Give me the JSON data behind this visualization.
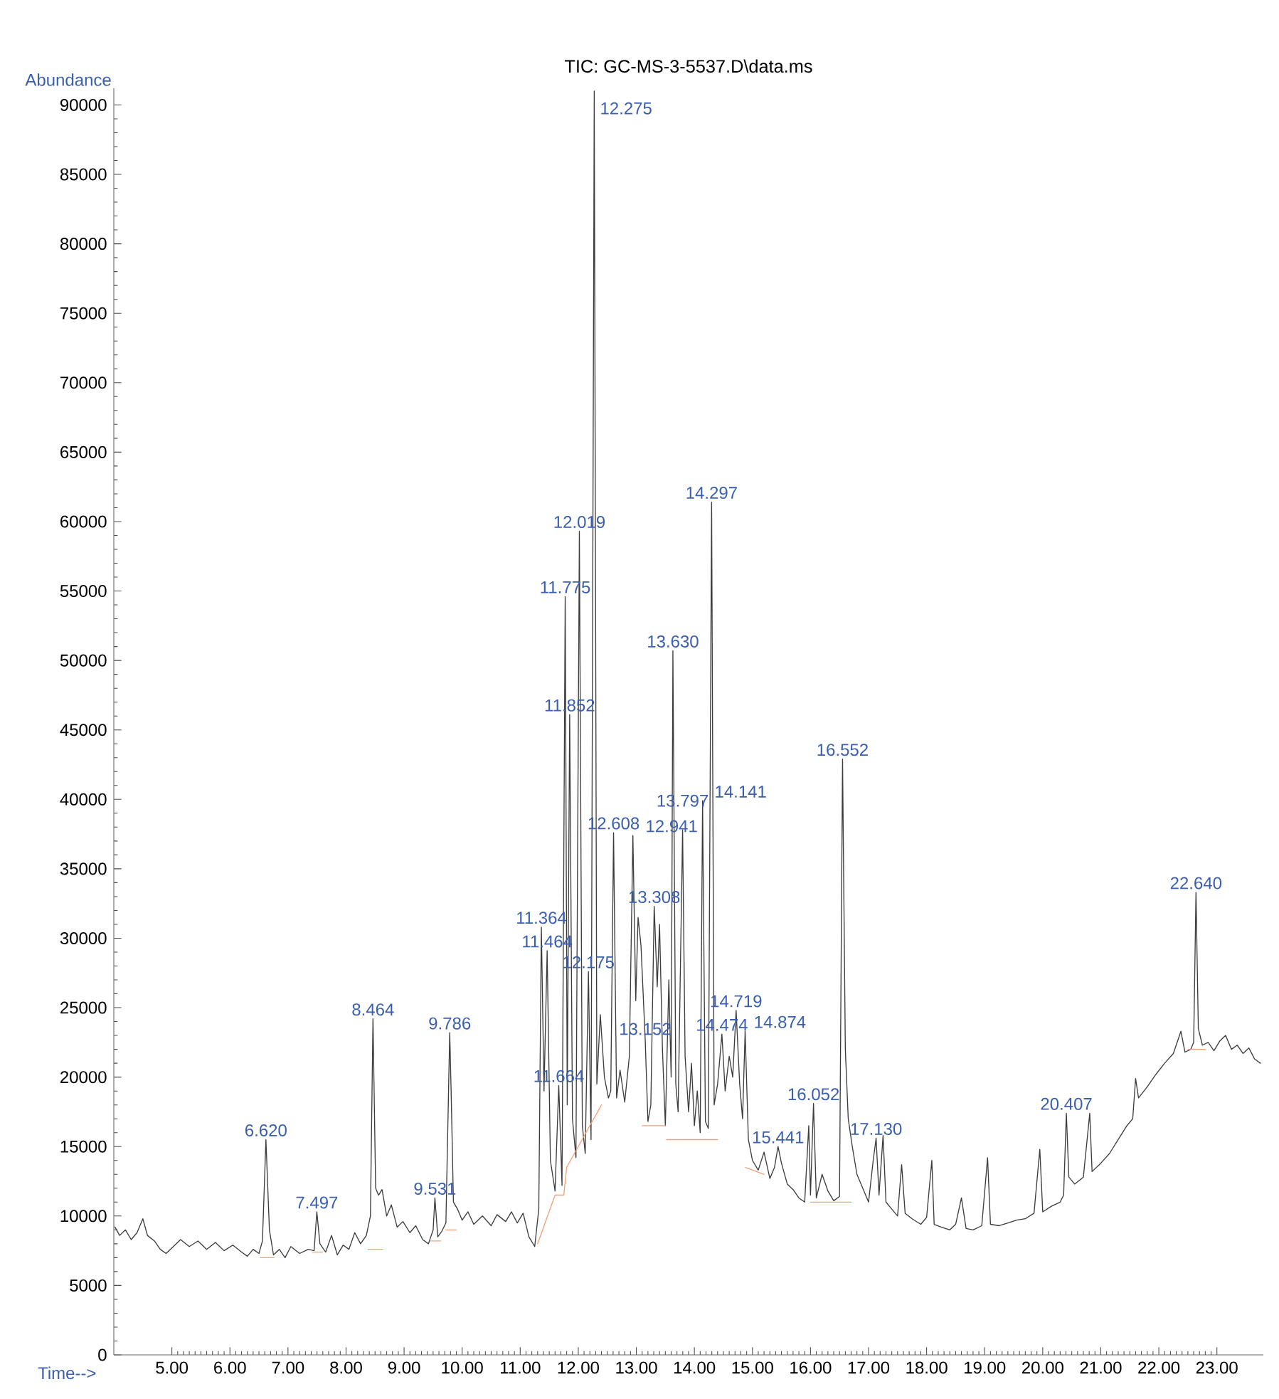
{
  "chart_data": {
    "type": "line",
    "title": "TIC: GC-MS-3-5537.D\\data.ms",
    "xlabel": "Time-->",
    "ylabel": "Abundance",
    "xlim": [
      4.0,
      23.8
    ],
    "ylim": [
      0,
      91200
    ],
    "xticks": [
      {
        "value": 5,
        "label": "5.00"
      },
      {
        "value": 6,
        "label": "6.00"
      },
      {
        "value": 7,
        "label": "7.00"
      },
      {
        "value": 8,
        "label": "8.00"
      },
      {
        "value": 9,
        "label": "9.00"
      },
      {
        "value": 10,
        "label": "10.00"
      },
      {
        "value": 11,
        "label": "11.00"
      },
      {
        "value": 12,
        "label": "12.00"
      },
      {
        "value": 13,
        "label": "13.00"
      },
      {
        "value": 14,
        "label": "14.00"
      },
      {
        "value": 15,
        "label": "15.00"
      },
      {
        "value": 16,
        "label": "16.00"
      },
      {
        "value": 17,
        "label": "17.00"
      },
      {
        "value": 18,
        "label": "18.00"
      },
      {
        "value": 19,
        "label": "19.00"
      },
      {
        "value": 20,
        "label": "20.00"
      },
      {
        "value": 21,
        "label": "21.00"
      },
      {
        "value": 22,
        "label": "22.00"
      },
      {
        "value": 23,
        "label": "23.00"
      }
    ],
    "yticks": [
      0,
      5000,
      10000,
      15000,
      20000,
      25000,
      30000,
      35000,
      40000,
      45000,
      50000,
      55000,
      60000,
      65000,
      70000,
      75000,
      80000,
      85000,
      90000
    ],
    "series": [
      {
        "color": "#3c3c3c",
        "x": [
          4.02,
          4.1,
          4.2,
          4.3,
          4.4,
          4.5,
          4.58,
          4.7,
          4.8,
          4.9,
          5.0,
          5.15,
          5.3,
          5.45,
          5.6,
          5.75,
          5.9,
          6.05,
          6.2,
          6.3,
          6.4,
          6.5,
          6.56,
          6.62,
          6.68,
          6.75,
          6.85,
          6.95,
          7.05,
          7.2,
          7.35,
          7.45,
          7.497,
          7.55,
          7.65,
          7.75,
          7.85,
          7.95,
          8.05,
          8.15,
          8.25,
          8.35,
          8.42,
          8.464,
          8.51,
          8.56,
          8.62,
          8.7,
          8.78,
          8.88,
          8.98,
          9.1,
          9.2,
          9.32,
          9.42,
          9.5,
          9.531,
          9.58,
          9.65,
          9.72,
          9.786,
          9.81,
          9.85,
          9.92,
          10.0,
          10.1,
          10.2,
          10.35,
          10.5,
          10.6,
          10.75,
          10.85,
          10.95,
          11.05,
          11.15,
          11.25,
          11.32,
          11.364,
          11.41,
          11.464,
          11.52,
          11.6,
          11.664,
          11.72,
          11.775,
          11.81,
          11.852,
          11.9,
          11.96,
          12.019,
          12.07,
          12.12,
          12.175,
          12.22,
          12.275,
          12.32,
          12.38,
          12.45,
          12.52,
          12.56,
          12.608,
          12.66,
          12.72,
          12.8,
          12.88,
          12.941,
          12.99,
          13.03,
          13.08,
          13.152,
          13.2,
          13.25,
          13.308,
          13.36,
          13.4,
          13.45,
          13.5,
          13.56,
          13.6,
          13.63,
          13.68,
          13.72,
          13.797,
          13.84,
          13.9,
          13.95,
          14.0,
          14.05,
          14.1,
          14.141,
          14.19,
          14.24,
          14.297,
          14.34,
          14.4,
          14.474,
          14.53,
          14.6,
          14.66,
          14.719,
          14.78,
          14.83,
          14.874,
          14.93,
          15.0,
          15.1,
          15.2,
          15.3,
          15.38,
          15.441,
          15.5,
          15.6,
          15.7,
          15.8,
          15.9,
          15.97,
          16.0,
          16.052,
          16.1,
          16.2,
          16.3,
          16.4,
          16.5,
          16.552,
          16.6,
          16.65,
          16.72,
          16.8,
          16.9,
          17.0,
          17.08,
          17.13,
          17.18,
          17.25,
          17.3,
          17.4,
          17.5,
          17.57,
          17.63,
          17.75,
          17.9,
          18.0,
          18.09,
          18.13,
          18.25,
          18.4,
          18.5,
          18.6,
          18.68,
          18.8,
          18.95,
          19.05,
          19.1,
          19.25,
          19.4,
          19.55,
          19.7,
          19.85,
          19.95,
          20.0,
          20.15,
          20.3,
          20.36,
          20.407,
          20.45,
          20.55,
          20.7,
          20.81,
          20.85,
          21.0,
          21.15,
          21.3,
          21.45,
          21.55,
          21.6,
          21.65,
          21.8,
          21.95,
          22.1,
          22.25,
          22.38,
          22.45,
          22.55,
          22.6,
          22.64,
          22.68,
          22.75,
          22.85,
          22.95,
          23.05,
          23.15,
          23.25,
          23.35,
          23.45,
          23.55,
          23.65,
          23.75
        ],
        "values": [
          9200,
          8600,
          9000,
          8300,
          8800,
          9800,
          8600,
          8200,
          7600,
          7300,
          7700,
          8300,
          7800,
          8200,
          7600,
          8100,
          7500,
          7900,
          7400,
          7100,
          7600,
          7300,
          8200,
          15500,
          9000,
          7200,
          7600,
          7000,
          7800,
          7300,
          7600,
          7500,
          10300,
          8000,
          7400,
          8600,
          7200,
          7900,
          7600,
          8800,
          8000,
          8600,
          10000,
          24200,
          12000,
          11500,
          11900,
          10000,
          10800,
          9200,
          9600,
          8800,
          9300,
          8300,
          8000,
          9000,
          11300,
          8500,
          8900,
          9500,
          23200,
          19000,
          11000,
          10500,
          9700,
          10300,
          9400,
          10000,
          9300,
          10100,
          9600,
          10300,
          9500,
          10200,
          8500,
          7800,
          10500,
          30800,
          19000,
          29100,
          14000,
          11800,
          19400,
          12200,
          54600,
          18000,
          46100,
          17000,
          14200,
          59300,
          16500,
          14500,
          27600,
          15500,
          91000,
          19500,
          24500,
          20000,
          18500,
          19000,
          37600,
          18500,
          20500,
          18200,
          21500,
          37400,
          25500,
          31500,
          29500,
          22800,
          16800,
          18000,
          32300,
          26500,
          31000,
          22000,
          16500,
          27000,
          20000,
          50700,
          19500,
          17500,
          37800,
          21500,
          17500,
          21000,
          16500,
          19000,
          16000,
          39900,
          16800,
          16300,
          61400,
          18000,
          19500,
          23100,
          19000,
          21500,
          20000,
          24800,
          19500,
          17000,
          23300,
          15500,
          14000,
          13300,
          14600,
          12700,
          13500,
          15000,
          13800,
          12300,
          11900,
          11300,
          11000,
          16500,
          11500,
          18100,
          11300,
          13000,
          11800,
          11100,
          11400,
          42900,
          22000,
          17000,
          15000,
          13000,
          12000,
          11000,
          14000,
          15600,
          11500,
          15800,
          11000,
          10500,
          10000,
          13700,
          10200,
          9800,
          9400,
          9900,
          14000,
          9400,
          9200,
          9000,
          9400,
          11300,
          9100,
          9000,
          9300,
          14200,
          9400,
          9300,
          9500,
          9700,
          9800,
          10200,
          14800,
          10300,
          10700,
          11000,
          11500,
          17400,
          12800,
          12300,
          12800,
          17400,
          13200,
          13800,
          14500,
          15500,
          16500,
          17000,
          19900,
          18500,
          19300,
          20200,
          21000,
          21700,
          23300,
          21800,
          22000,
          22500,
          33300,
          23500,
          22300,
          22500,
          21900,
          22600,
          23000,
          22000,
          22300,
          21700,
          22100,
          21300,
          21000
        ]
      },
      {
        "color": "#f2a07a",
        "x": [
          6.52,
          6.76,
          6.77,
          7.42,
          7.6,
          7.61,
          8.38,
          8.63,
          8.64,
          9.46,
          9.63,
          9.64,
          9.72,
          9.9,
          9.91,
          11.3,
          11.6,
          11.75,
          11.8,
          12.4,
          12.41,
          13.1,
          13.5,
          13.51,
          13.52,
          14.4,
          14.41,
          14.88,
          15.2,
          15.21,
          16.0,
          16.7,
          16.71,
          22.5,
          22.8
        ],
        "values": [
          7000,
          7000,
          null,
          7400,
          7400,
          null,
          7600,
          7600,
          null,
          8200,
          8200,
          null,
          9000,
          9000,
          null,
          8000,
          11500,
          11500,
          13500,
          18000,
          null,
          16500,
          16500,
          null,
          15500,
          15500,
          null,
          13500,
          13000,
          null,
          11000,
          11000,
          null,
          22000,
          22000
        ]
      }
    ],
    "annotations": [
      {
        "text": "6.620",
        "x": 6.62,
        "y": 15500
      },
      {
        "text": "7.497",
        "x": 7.497,
        "y": 10300
      },
      {
        "text": "8.464",
        "x": 8.464,
        "y": 24200
      },
      {
        "text": "9.531",
        "x": 9.531,
        "y": 11300
      },
      {
        "text": "9.786",
        "x": 9.786,
        "y": 23200
      },
      {
        "text": "11.364",
        "x": 11.364,
        "y": 30800
      },
      {
        "text": "11.464",
        "x": 11.464,
        "y": 29100
      },
      {
        "text": "11.664",
        "x": 11.664,
        "y": 19400
      },
      {
        "text": "11.775",
        "x": 11.775,
        "y": 54600
      },
      {
        "text": "11.852",
        "x": 11.852,
        "y": 46100
      },
      {
        "text": "12.019",
        "x": 12.019,
        "y": 59300
      },
      {
        "text": "12.175",
        "x": 12.175,
        "y": 27600
      },
      {
        "text": "12.275",
        "x": 12.275,
        "y": 91000
      },
      {
        "text": "12.608",
        "x": 12.608,
        "y": 37600
      },
      {
        "text": "12.941",
        "x": 12.941,
        "y": 37400
      },
      {
        "text": "13.152",
        "x": 13.152,
        "y": 22800
      },
      {
        "text": "13.308",
        "x": 13.308,
        "y": 32300
      },
      {
        "text": "13.630",
        "x": 13.63,
        "y": 50700
      },
      {
        "text": "13.797",
        "x": 13.797,
        "y": 37800
      },
      {
        "text": "14.141",
        "x": 14.141,
        "y": 39900
      },
      {
        "text": "14.297",
        "x": 14.297,
        "y": 61400
      },
      {
        "text": "14.474",
        "x": 14.474,
        "y": 23100
      },
      {
        "text": "14.719",
        "x": 14.719,
        "y": 24800
      },
      {
        "text": "14.874",
        "x": 14.874,
        "y": 23300
      },
      {
        "text": "15.441",
        "x": 15.441,
        "y": 15000
      },
      {
        "text": "16.052",
        "x": 16.052,
        "y": 18100
      },
      {
        "text": "16.552",
        "x": 16.552,
        "y": 42900
      },
      {
        "text": "17.130",
        "x": 17.13,
        "y": 15600
      },
      {
        "text": "20.407",
        "x": 20.407,
        "y": 17400
      },
      {
        "text": "22.640",
        "x": 22.64,
        "y": 33300
      }
    ]
  }
}
